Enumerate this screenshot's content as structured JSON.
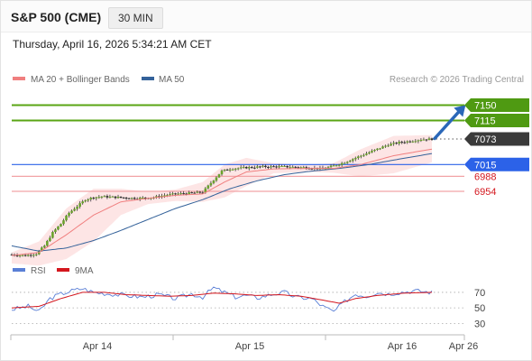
{
  "header": {
    "symbol": "S&P 500 (CME)",
    "timeframe": "30 MIN",
    "datetime": "Thursday, April 16, 2026 5:34:21 AM CET"
  },
  "legend": {
    "ma20": "MA 20 + Bollinger Bands",
    "ma50": "MA 50",
    "credit": "Research © 2026 Trading Central",
    "rsi": "RSI",
    "rsi_ma": "9MA"
  },
  "colors": {
    "up": "#6aa22c",
    "down": "#2e2e2e",
    "resistance": "#5aa514",
    "support_blue": "#2c62e8",
    "support_red": "#d4171e",
    "ma20": "#f07f7f",
    "ma50": "#34629a",
    "bollinger_fill": "#fde2e2",
    "rsi": "#5a7fd6",
    "rsi_ma": "#d4171e"
  },
  "chart_data": [
    {
      "type": "candlestick",
      "x_labels": [
        "Apr 14",
        "Apr 15",
        "Apr 16",
        "Apr 26"
      ],
      "ylim": [
        6800,
        7190
      ],
      "last_price": 7073,
      "levels": [
        {
          "value": 7150,
          "label": "7150",
          "kind": "resistance"
        },
        {
          "value": 7115,
          "label": "7115",
          "kind": "resistance"
        },
        {
          "value": 7073,
          "label": "7073",
          "kind": "last"
        },
        {
          "value": 7015,
          "label": "7015",
          "kind": "pivot"
        },
        {
          "value": 6988,
          "label": "6988",
          "kind": "support"
        },
        {
          "value": 6954,
          "label": "6954",
          "kind": "support"
        }
      ],
      "close_path": [
        [
          0,
          6810
        ],
        [
          5,
          6808
        ],
        [
          9,
          6812
        ],
        [
          12,
          6830
        ],
        [
          15,
          6860
        ],
        [
          18,
          6880
        ],
        [
          21,
          6905
        ],
        [
          24,
          6920
        ],
        [
          27,
          6935
        ],
        [
          30,
          6940
        ],
        [
          33,
          6942
        ],
        [
          40,
          6940
        ],
        [
          45,
          6938
        ],
        [
          52,
          6940
        ],
        [
          56,
          6945
        ],
        [
          60,
          6948
        ],
        [
          66,
          6950
        ],
        [
          70,
          6952
        ],
        [
          74,
          6980
        ],
        [
          77,
          7000
        ],
        [
          80,
          7005
        ],
        [
          86,
          7008
        ],
        [
          92,
          7010
        ],
        [
          100,
          7010
        ],
        [
          108,
          7008
        ],
        [
          114,
          7005
        ],
        [
          118,
          7012
        ],
        [
          122,
          7020
        ],
        [
          126,
          7030
        ],
        [
          130,
          7040
        ],
        [
          134,
          7050
        ],
        [
          138,
          7060
        ],
        [
          142,
          7065
        ],
        [
          146,
          7068
        ],
        [
          150,
          7072
        ],
        [
          154,
          7073
        ]
      ],
      "ma20_path": [
        [
          0,
          6808
        ],
        [
          10,
          6815
        ],
        [
          20,
          6855
        ],
        [
          30,
          6900
        ],
        [
          40,
          6930
        ],
        [
          50,
          6938
        ],
        [
          60,
          6945
        ],
        [
          70,
          6948
        ],
        [
          78,
          6975
        ],
        [
          86,
          6998
        ],
        [
          96,
          7005
        ],
        [
          108,
          7006
        ],
        [
          118,
          7006
        ],
        [
          128,
          7015
        ],
        [
          140,
          7035
        ],
        [
          154,
          7050
        ]
      ],
      "ma50_path": [
        [
          0,
          6830
        ],
        [
          10,
          6818
        ],
        [
          20,
          6825
        ],
        [
          30,
          6842
        ],
        [
          40,
          6865
        ],
        [
          50,
          6890
        ],
        [
          60,
          6915
        ],
        [
          70,
          6935
        ],
        [
          80,
          6960
        ],
        [
          90,
          6978
        ],
        [
          100,
          6992
        ],
        [
          110,
          7000
        ],
        [
          120,
          7006
        ],
        [
          130,
          7014
        ],
        [
          140,
          7025
        ],
        [
          154,
          7040
        ]
      ],
      "bollinger_upper_path": [
        [
          0,
          6815
        ],
        [
          10,
          6840
        ],
        [
          20,
          6915
        ],
        [
          30,
          6960
        ],
        [
          40,
          6960
        ],
        [
          50,
          6953
        ],
        [
          60,
          6958
        ],
        [
          70,
          6975
        ],
        [
          78,
          7015
        ],
        [
          86,
          7030
        ],
        [
          96,
          7018
        ],
        [
          108,
          7014
        ],
        [
          118,
          7018
        ],
        [
          128,
          7050
        ],
        [
          140,
          7080
        ],
        [
          154,
          7082
        ]
      ],
      "bollinger_lower_path": [
        [
          0,
          6790
        ],
        [
          10,
          6785
        ],
        [
          20,
          6800
        ],
        [
          30,
          6840
        ],
        [
          40,
          6900
        ],
        [
          50,
          6925
        ],
        [
          60,
          6932
        ],
        [
          70,
          6930
        ],
        [
          78,
          6940
        ],
        [
          86,
          6966
        ],
        [
          96,
          6995
        ],
        [
          108,
          6998
        ],
        [
          118,
          6996
        ],
        [
          128,
          6988
        ],
        [
          140,
          6995
        ],
        [
          154,
          7020
        ]
      ],
      "projection": {
        "from": [
          155,
          7074
        ],
        "to": [
          166,
          7148
        ]
      }
    },
    {
      "type": "line",
      "name": "RSI",
      "ylim": [
        20,
        85
      ],
      "ticks": [
        70,
        50,
        30
      ],
      "rsi_path": [
        [
          0,
          48
        ],
        [
          6,
          52
        ],
        [
          10,
          45
        ],
        [
          14,
          62
        ],
        [
          18,
          68
        ],
        [
          22,
          72
        ],
        [
          26,
          75
        ],
        [
          30,
          70
        ],
        [
          36,
          68
        ],
        [
          42,
          66
        ],
        [
          48,
          64
        ],
        [
          54,
          67
        ],
        [
          60,
          62
        ],
        [
          66,
          68
        ],
        [
          70,
          64
        ],
        [
          74,
          76
        ],
        [
          78,
          70
        ],
        [
          82,
          64
        ],
        [
          86,
          66
        ],
        [
          90,
          63
        ],
        [
          96,
          68
        ],
        [
          100,
          70
        ],
        [
          104,
          64
        ],
        [
          110,
          62
        ],
        [
          114,
          52
        ],
        [
          118,
          45
        ],
        [
          122,
          58
        ],
        [
          126,
          68
        ],
        [
          130,
          65
        ],
        [
          134,
          70
        ],
        [
          138,
          68
        ],
        [
          142,
          70
        ],
        [
          148,
          72
        ],
        [
          154,
          70
        ]
      ],
      "rsi_ma_path": [
        [
          0,
          50
        ],
        [
          10,
          52
        ],
        [
          18,
          62
        ],
        [
          26,
          70
        ],
        [
          34,
          70
        ],
        [
          42,
          67
        ],
        [
          50,
          66
        ],
        [
          58,
          65
        ],
        [
          66,
          66
        ],
        [
          74,
          69
        ],
        [
          82,
          68
        ],
        [
          90,
          66
        ],
        [
          98,
          67
        ],
        [
          106,
          65
        ],
        [
          114,
          60
        ],
        [
          120,
          56
        ],
        [
          126,
          62
        ],
        [
          134,
          66
        ],
        [
          144,
          69
        ],
        [
          154,
          70
        ]
      ]
    }
  ]
}
